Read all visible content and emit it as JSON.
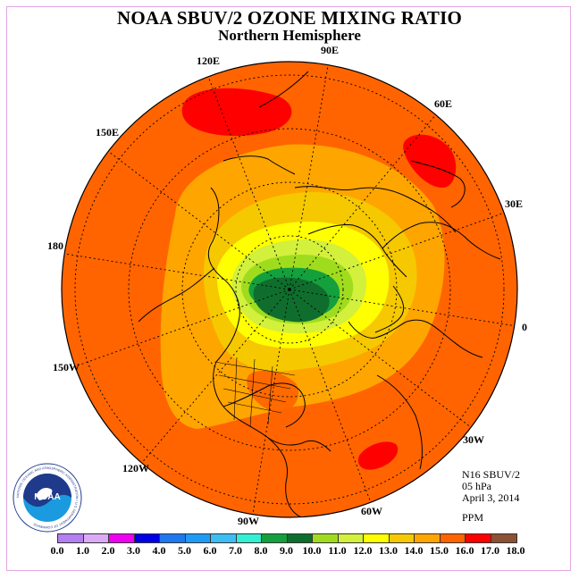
{
  "title": "NOAA SBUV/2 OZONE MIXING RATIO",
  "subtitle": "Northern Hemisphere",
  "longitude_labels": [
    "90E",
    "60E",
    "30E",
    "0",
    "30W",
    "60W",
    "90W",
    "120W",
    "150W",
    "180",
    "150E",
    "120E"
  ],
  "info": {
    "instrument": "N16 SBUV/2",
    "pressure": "05 hPa",
    "date": "April 3, 2014",
    "units": "PPM"
  },
  "logo": {
    "text": "NOAA",
    "ring_text": "NATIONAL OCEANIC AND ATMOSPHERIC ADMINISTRATION • U.S. DEPARTMENT OF COMMERCE"
  },
  "colorbar": {
    "colors": [
      "#b47ff0",
      "#dcaaf5",
      "#f000f0",
      "#0000e6",
      "#1e78f0",
      "#1e9bf5",
      "#3cbef5",
      "#32f0d2",
      "#14a03c",
      "#0f6e2d",
      "#a0dc1e",
      "#d2f03c",
      "#ffff00",
      "#f5c800",
      "#ffa500",
      "#ff6400",
      "#ff0000",
      "#8c5032"
    ],
    "tick_labels": [
      "0.0",
      "1.0",
      "2.0",
      "3.0",
      "4.0",
      "5.0",
      "6.0",
      "7.0",
      "8.0",
      "9.0",
      "10.0",
      "11.0",
      "12.0",
      "13.0",
      "14.0",
      "15.0",
      "16.0",
      "17.0",
      "18.0"
    ]
  }
}
